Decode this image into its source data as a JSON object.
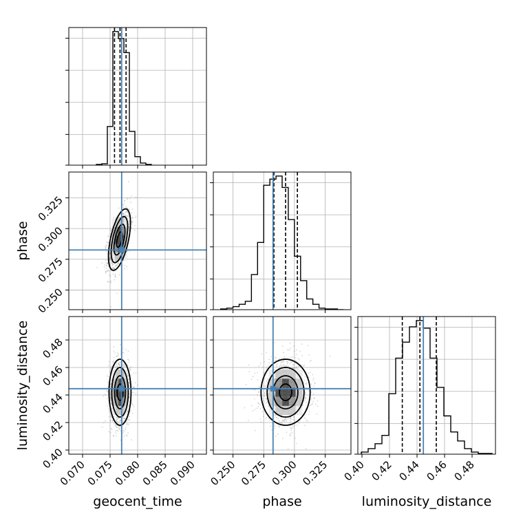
{
  "colors": {
    "truth": "#4682b4",
    "hist": "#000000",
    "grid": "#b0b0b0",
    "points": "#888888",
    "density": [
      "#ececec",
      "#c4c4c4",
      "#8a8a8a",
      "#3a3a3a"
    ]
  },
  "chart_data": {
    "type": "corner",
    "title": "",
    "parameters": [
      "geocent_time",
      "phase",
      "luminosity_distance"
    ],
    "axis_labels": [
      "geocent_time",
      "phase",
      "luminosity_distance"
    ],
    "ranges": {
      "geocent_time": [
        0.0675,
        0.0925
      ],
      "phase": [
        0.234,
        0.346
      ],
      "luminosity_distance": [
        0.397,
        0.497
      ]
    },
    "ticks": {
      "geocent_time": [
        "0.070",
        "0.075",
        "0.080",
        "0.085",
        "0.090"
      ],
      "phase": [
        "0.250",
        "0.275",
        "0.300",
        "0.325"
      ],
      "luminosity_distance": [
        "0.40",
        "0.42",
        "0.44",
        "0.46",
        "0.48"
      ]
    },
    "truths": {
      "geocent_time": 0.0771,
      "phase": 0.2826,
      "luminosity_distance": 0.4446
    },
    "quantiles": {
      "geocent_time": [
        0.0758,
        0.0768,
        0.0779
      ],
      "phase": [
        0.2833,
        0.2928,
        0.3024
      ],
      "luminosity_distance": [
        0.4293,
        0.4421,
        0.454
      ]
    },
    "histograms": {
      "geocent_time": {
        "edges": [
          0.0725,
          0.0735,
          0.0745,
          0.0755,
          0.0765,
          0.0775,
          0.0785,
          0.0795,
          0.0805,
          0.0815,
          0.0825
        ],
        "counts": [
          1,
          2,
          55,
          190,
          180,
          160,
          48,
          12,
          3,
          1
        ]
      },
      "phase": {
        "edges": [
          0.24,
          0.245,
          0.25,
          0.255,
          0.26,
          0.265,
          0.27,
          0.275,
          0.28,
          0.285,
          0.29,
          0.295,
          0.3,
          0.305,
          0.31,
          0.315,
          0.32,
          0.325,
          0.33,
          0.335,
          0.34
        ],
        "counts": [
          1,
          2,
          4,
          7,
          11,
          46,
          88,
          163,
          171,
          175,
          160,
          118,
          70,
          38,
          14,
          7,
          2,
          1,
          1,
          0
        ]
      },
      "luminosity_distance": {
        "edges": [
          0.3995,
          0.4045,
          0.4095,
          0.4145,
          0.4195,
          0.4245,
          0.4295,
          0.4345,
          0.4395,
          0.4445,
          0.4495,
          0.4545,
          0.4595,
          0.4645,
          0.4695,
          0.4745,
          0.4795,
          0.4845,
          0.4895,
          0.4945
        ],
        "counts": [
          3,
          8,
          15,
          27,
          87,
          138,
          161,
          183,
          192,
          181,
          138,
          96,
          55,
          32,
          19,
          8,
          3,
          1,
          1
        ]
      }
    },
    "posteriors_2d": [
      {
        "x": "geocent_time",
        "y": "phase",
        "mean": [
          0.0767,
          0.291
        ],
        "sd": [
          0.001,
          0.0125
        ],
        "rho": 0.55,
        "contour_levels": [
          0.5,
          1.0,
          1.5,
          2.0
        ]
      },
      {
        "x": "geocent_time",
        "y": "luminosity_distance",
        "mean": [
          0.0768,
          0.442
        ],
        "sd": [
          0.001,
          0.012
        ],
        "rho": 0.0,
        "contour_levels": [
          0.5,
          1.0,
          1.5,
          2.0
        ]
      },
      {
        "x": "phase",
        "y": "luminosity_distance",
        "mean": [
          0.2928,
          0.442
        ],
        "sd": [
          0.01,
          0.012
        ],
        "rho": 0.0,
        "contour_levels": [
          0.5,
          1.0,
          1.5,
          2.0
        ]
      }
    ],
    "grid": true,
    "legend": "none"
  }
}
